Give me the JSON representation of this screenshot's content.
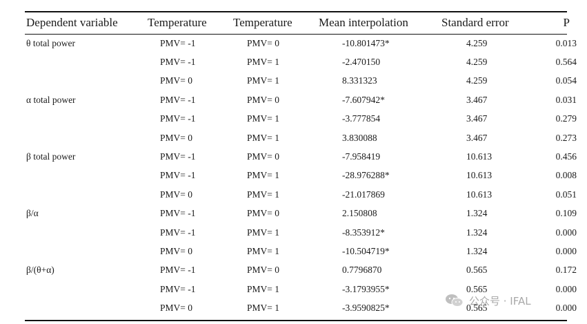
{
  "table": {
    "headers": [
      "Dependent variable",
      "Temperature",
      "Temperature",
      "Mean interpolation",
      "Standard error",
      "P"
    ],
    "rows": [
      [
        "θ total power",
        "PMV= -1",
        "PMV= 0",
        "-10.801473*",
        "4.259",
        "0.013"
      ],
      [
        "",
        "PMV= -1",
        "PMV= 1",
        "-2.470150",
        "4.259",
        "0.564"
      ],
      [
        "",
        "PMV= 0",
        "PMV= 1",
        "8.331323",
        "4.259",
        "0.054"
      ],
      [
        "α total power",
        "PMV= -1",
        "PMV= 0",
        "-7.607942*",
        "3.467",
        "0.031"
      ],
      [
        "",
        "PMV= -1",
        "PMV= 1",
        "-3.777854",
        "3.467",
        "0.279"
      ],
      [
        "",
        "PMV= 0",
        "PMV= 1",
        "3.830088",
        "3.467",
        "0.273"
      ],
      [
        "β total power",
        "PMV= -1",
        "PMV= 0",
        "-7.958419",
        "10.613",
        "0.456"
      ],
      [
        "",
        "PMV= -1",
        "PMV= 1",
        "-28.976288*",
        "10.613",
        "0.008"
      ],
      [
        "",
        "PMV= 0",
        "PMV= 1",
        "-21.017869",
        "10.613",
        "0.051"
      ],
      [
        "β/α",
        "PMV= -1",
        "PMV= 0",
        "2.150808",
        "1.324",
        "0.109"
      ],
      [
        "",
        "PMV= -1",
        "PMV= 1",
        "-8.353912*",
        "1.324",
        "0.000"
      ],
      [
        "",
        "PMV= 0",
        "PMV= 1",
        "-10.504719*",
        "1.324",
        "0.000"
      ],
      [
        "β/(θ+α)",
        "PMV= -1",
        "PMV= 0",
        "0.7796870",
        "0.565",
        "0.172"
      ],
      [
        "",
        "PMV= -1",
        "PMV= 1",
        "-3.1793955*",
        "0.565",
        "0.000"
      ],
      [
        "",
        "PMV= 0",
        "PMV= 1",
        "-3.9590825*",
        "0.565",
        "0.000"
      ]
    ]
  },
  "watermark": {
    "text": "公众号 · IFAL",
    "icon": "wechat-icon",
    "color": "#9a9a9a"
  }
}
